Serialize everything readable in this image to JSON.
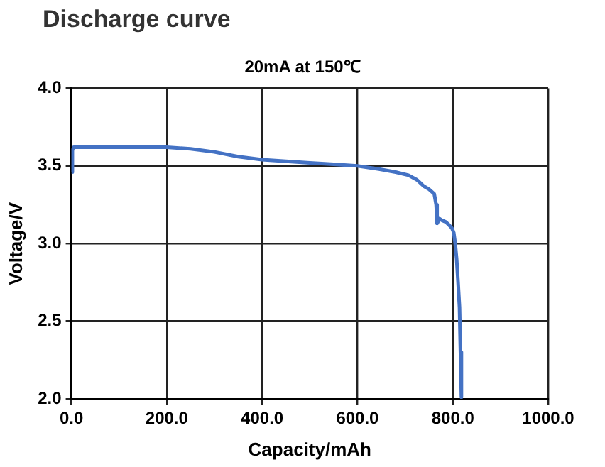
{
  "chart_data": {
    "type": "line",
    "title": "Discharge curve",
    "subtitle": "20mA at 150℃",
    "xlabel": "Capacity/mAh",
    "ylabel": "Voltage/V",
    "series": [
      {
        "color": "#4472c4",
        "x": [
          0,
          2,
          5,
          50,
          100,
          150,
          200,
          250,
          300,
          350,
          400,
          450,
          500,
          550,
          600,
          645,
          680,
          707,
          725,
          739,
          750,
          761,
          765,
          767,
          772,
          777,
          785,
          792,
          798,
          802,
          805,
          808,
          811,
          814,
          816,
          818
        ],
        "values": [
          3.46,
          3.6,
          3.62,
          3.62,
          3.62,
          3.62,
          3.62,
          3.61,
          3.59,
          3.56,
          3.54,
          3.53,
          3.52,
          3.51,
          3.5,
          3.48,
          3.46,
          3.44,
          3.41,
          3.37,
          3.35,
          3.32,
          3.25,
          3.13,
          3.16,
          3.15,
          3.14,
          3.12,
          3.1,
          3.07,
          3.0,
          2.9,
          2.75,
          2.59,
          2.3,
          2.01
        ]
      }
    ],
    "xlim": [
      0,
      1000
    ],
    "xticks": [
      {
        "value": 0,
        "label": "0.0"
      },
      {
        "value": 200,
        "label": "200.0"
      },
      {
        "value": 400,
        "label": "400.0"
      },
      {
        "value": 600,
        "label": "600.0"
      },
      {
        "value": 800,
        "label": "800.0"
      },
      {
        "value": 1000,
        "label": "1000.0"
      }
    ],
    "ylim": [
      2,
      4
    ],
    "yticks": [
      {
        "value": 2,
        "label": "2.0"
      },
      {
        "value": 2.5,
        "label": "2.5"
      },
      {
        "value": 3,
        "label": "3.0"
      },
      {
        "value": 3.5,
        "label": "3.5"
      },
      {
        "value": 4,
        "label": "4.0"
      }
    ],
    "grid": true,
    "legend": false,
    "marker": "none",
    "line_style": "solid"
  }
}
